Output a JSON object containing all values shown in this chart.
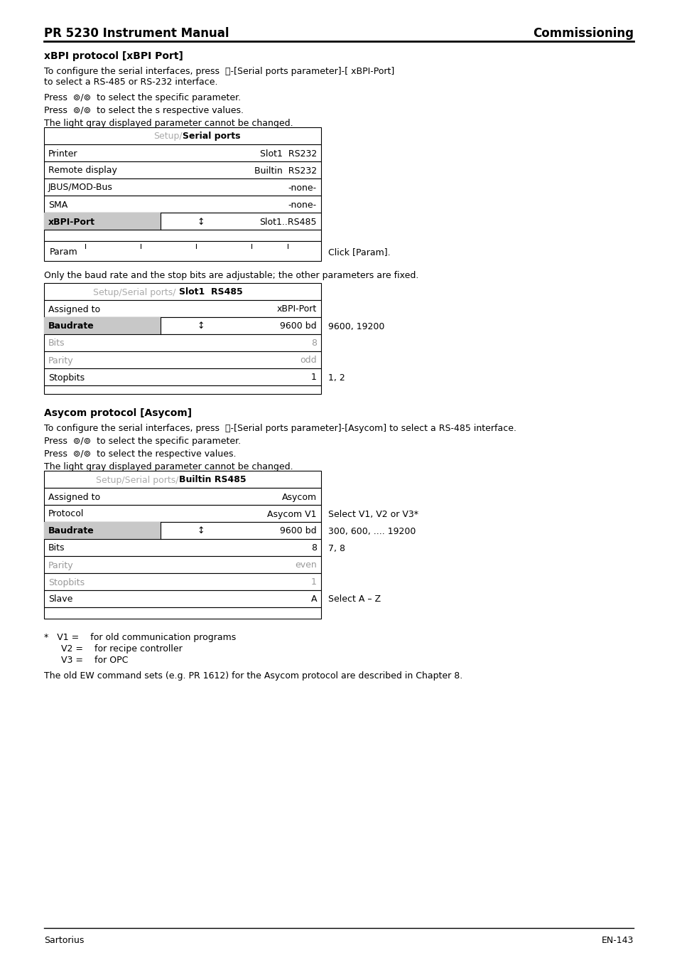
{
  "page_title_left": "PR 5230 Instrument Manual",
  "page_title_right": "Commissioning",
  "footer_left": "Sartorius",
  "footer_right": "EN-143",
  "section1_title": "xBPI protocol [xBPI Port]",
  "section1_para1a": "To configure the serial interfaces, press ",
  "section1_para1b": "-[Serial ports parameter]-[ xBPI-Port]",
  "section1_para1c": "to select a RS-485 or RS-232 interface.",
  "section1_para2": "Press  +/+  to select the specific parameter.",
  "section1_para3": "Press  +/+  to select the s respective values.",
  "section1_para4": "The light gray displayed parameter cannot be changed.",
  "table1_header_gray": "Setup/",
  "table1_header_black": "Serial ports",
  "table1_rows": [
    {
      "label": "Printer",
      "arrow": "",
      "value": "Slot1  RS232",
      "highlight": false,
      "gray_text": false
    },
    {
      "label": "Remote display",
      "arrow": "",
      "value": "Builtin  RS232",
      "highlight": false,
      "gray_text": false
    },
    {
      "label": "JBUS/MOD-Bus",
      "arrow": "",
      "value": "-none-",
      "highlight": false,
      "gray_text": false
    },
    {
      "label": "SMA",
      "arrow": "",
      "value": "-none-",
      "highlight": false,
      "gray_text": false
    },
    {
      "label": "xBPI-Port",
      "arrow": "↕",
      "value": "Slot1..RS485",
      "highlight": true,
      "gray_text": false
    }
  ],
  "table1_param_label": "Param",
  "table1_param_note": "Click [Param].",
  "section2_note": "Only the baud rate and the stop bits are adjustable; the other parameters are fixed.",
  "table2_header_gray": "Setup/Serial ports/ ",
  "table2_header_black": "Slot1  RS485",
  "table2_rows": [
    {
      "label": "Assigned to",
      "arrow": "",
      "value": "xBPI-Port",
      "highlight": false,
      "gray_text": false,
      "note": ""
    },
    {
      "label": "Baudrate",
      "arrow": "↕",
      "value": "9600 bd",
      "highlight": true,
      "gray_text": false,
      "note": "9600, 19200"
    },
    {
      "label": "Bits",
      "arrow": "",
      "value": "8",
      "highlight": false,
      "gray_text": true,
      "note": ""
    },
    {
      "label": "Parity",
      "arrow": "",
      "value": "odd",
      "highlight": false,
      "gray_text": true,
      "note": ""
    },
    {
      "label": "Stopbits",
      "arrow": "",
      "value": "1",
      "highlight": false,
      "gray_text": false,
      "note": "1, 2"
    }
  ],
  "section3_title": "Asycom protocol [Asycom]",
  "section3_para1a": "To configure the serial interfaces, press ",
  "section3_para1b": "-[Serial ports parameter]-[Asycom] to select a RS-485 interface.",
  "section3_para2": "Press  +/+  to select the specific parameter.",
  "section3_para3": "Press  +/+  to select the respective values.",
  "section3_para4": "The light gray displayed parameter cannot be changed.",
  "table3_header_gray": "Setup/Serial ports/",
  "table3_header_black": "Builtin RS485",
  "table3_rows": [
    {
      "label": "Assigned to",
      "arrow": "",
      "value": "Asycom",
      "highlight": false,
      "gray_text": false,
      "note": ""
    },
    {
      "label": "Protocol",
      "arrow": "",
      "value": "Asycom V1",
      "highlight": false,
      "gray_text": false,
      "note": "Select V1, V2 or V3*"
    },
    {
      "label": "Baudrate",
      "arrow": "↕",
      "value": "9600 bd",
      "highlight": true,
      "gray_text": false,
      "note": "300, 600, .... 19200"
    },
    {
      "label": "Bits",
      "arrow": "",
      "value": "8",
      "highlight": false,
      "gray_text": false,
      "note": "7, 8"
    },
    {
      "label": "Parity",
      "arrow": "",
      "value": "even",
      "highlight": false,
      "gray_text": true,
      "note": ""
    },
    {
      "label": "Stopbits",
      "arrow": "",
      "value": "1",
      "highlight": false,
      "gray_text": true,
      "note": ""
    },
    {
      "label": "Slave",
      "arrow": "",
      "value": "A",
      "highlight": false,
      "gray_text": false,
      "note": "Select A – Z"
    }
  ],
  "footnote_star": "*",
  "footnote_v1": "V1 =",
  "footnote_v1_text": "for old communication programs",
  "footnote_v2": "V2 =",
  "footnote_v2_text": "for recipe controller",
  "footnote_v3": "V3 =",
  "footnote_v3_text": "for OPC",
  "closing_para": "The old EW command sets (e.g. PR 1612) for the Asycom protocol are described in Chapter 8.",
  "highlight_color": "#c8c8c8",
  "gray_text_color": "#999999",
  "header_gray_color": "#aaaaaa",
  "table_border_color": "#000000",
  "bg_color": "#ffffff"
}
